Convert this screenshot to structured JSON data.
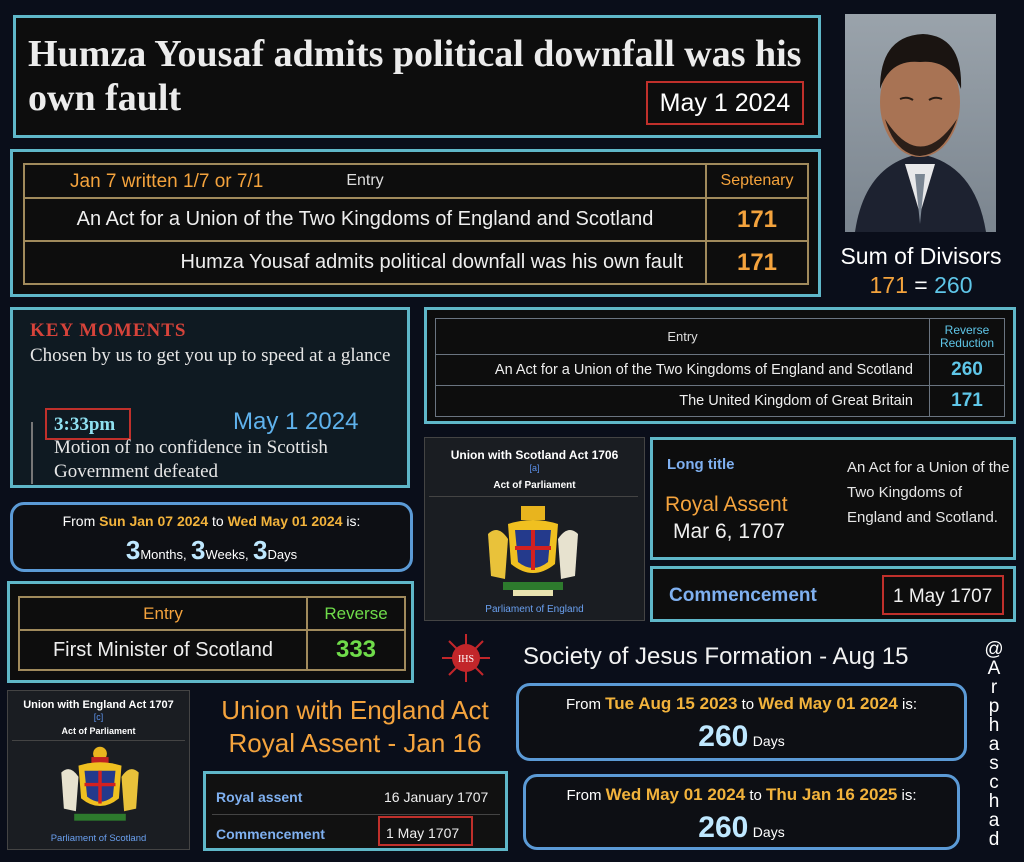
{
  "headline": {
    "title": "Humza Yousaf admits political downfall was his own fault",
    "date": "May 1 2024"
  },
  "table_septenary": {
    "header_note": "Jan 7 written 1/7 or 7/1",
    "col_entry": "Entry",
    "col_value": "Septenary",
    "rows": [
      {
        "entry": "An Act for a Union of the Two Kingdoms of England and Scotland",
        "value": "171"
      },
      {
        "entry": "Humza Yousaf admits political downfall was his own fault",
        "value": "171"
      }
    ]
  },
  "sum_divisors": {
    "label": "Sum of Divisors",
    "left": "171",
    "eq": "=",
    "right": "260"
  },
  "key_moments": {
    "heading": "KEY MOMENTS",
    "sub": "Chosen by us to get you up to speed at a glance",
    "time": "3:33pm",
    "date": "May 1 2024",
    "text": "Motion of no confidence in Scottish Government defeated"
  },
  "table_reverse_reduction": {
    "col_entry": "Entry",
    "col_value": "Reverse Reduction",
    "rows": [
      {
        "entry": "An Act for a Union of the Two Kingdoms of England and Scotland",
        "value": "260"
      },
      {
        "entry": "The United Kingdom of Great Britain",
        "value": "171"
      }
    ]
  },
  "calc1": {
    "from_label": "From",
    "from": "Sun Jan 07 2024",
    "to_label": "to",
    "to": "Wed May 01 2024",
    "is": "is:",
    "n1": "3",
    "u1": "Months,",
    "n2": "3",
    "u2": "Weeks,",
    "n3": "3",
    "u3": "Days"
  },
  "wiki_scotland": {
    "title": "Union with Scotland Act 1706",
    "note": "[a]",
    "type": "Act of Parliament",
    "parliament": "Parliament of England"
  },
  "long_title": {
    "label": "Long title",
    "text": "An Act for a Union of the Two Kingdoms of England and Scotland.",
    "assent_label": "Royal Assent",
    "assent_date": "Mar 6, 1707"
  },
  "commencement": {
    "label": "Commencement",
    "date": "1 May 1707"
  },
  "table_reverse": {
    "col_entry": "Entry",
    "col_value": "Reverse",
    "entry": "First Minister of Scotland",
    "value": "333"
  },
  "jesuits": {
    "text": "Society of Jesus Formation - Aug 15",
    "emblem": "IHS"
  },
  "handle": {
    "chars": [
      "@",
      "A",
      "r",
      "p",
      "h",
      "a",
      "s",
      "c",
      "h",
      "a",
      "d"
    ]
  },
  "calc2": {
    "from_label": "From",
    "from": "Tue Aug 15 2023",
    "to_label": "to",
    "to": "Wed May 01 2024",
    "is": "is:",
    "n": "260",
    "u": "Days"
  },
  "calc3": {
    "from_label": "From",
    "from": "Wed May 01 2024",
    "to_label": "to",
    "to": "Thu Jan 16 2025",
    "is": "is:",
    "n": "260",
    "u": "Days"
  },
  "wiki_england": {
    "title": "Union with England Act 1707",
    "note": "[c]",
    "type": "Act of Parliament",
    "parliament": "Parliament of Scotland"
  },
  "union_england": {
    "line1": "Union with England Act",
    "line2": "Royal Assent - Jan 16"
  },
  "royal_table": {
    "assent_label": "Royal assent",
    "assent_date": "16 January 1707",
    "comm_label": "Commencement",
    "comm_date": "1 May 1707"
  },
  "photo": {
    "alt": "portrait photo"
  }
}
